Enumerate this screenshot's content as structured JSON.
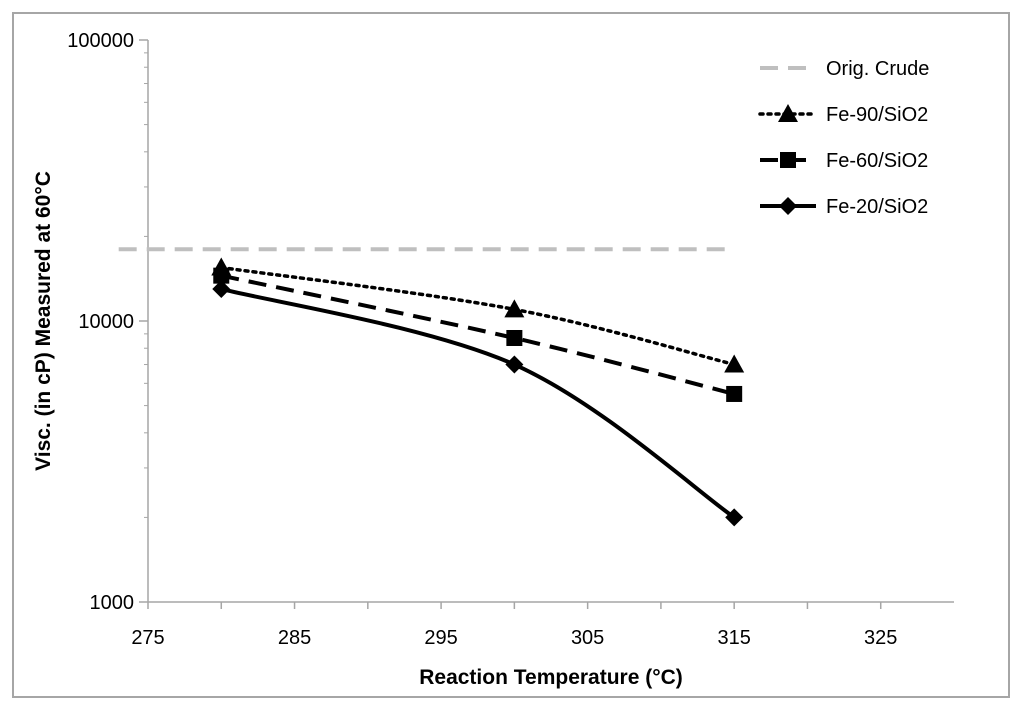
{
  "chart_data": {
    "type": "line",
    "title": "",
    "xlabel": "Reaction Temperature (°C)",
    "ylabel": "Visc. (in cP) Measured at 60°C",
    "xlim": [
      275,
      330
    ],
    "ylim": [
      1000,
      100000
    ],
    "yscale": "log",
    "x_ticks": [
      275,
      285,
      295,
      305,
      315,
      325
    ],
    "y_ticks": [
      1000,
      10000,
      100000
    ],
    "legend_position": "top-right",
    "reference_line": {
      "name": "Orig. Crude",
      "value": 18000,
      "x_range": [
        273,
        315
      ],
      "color": "#bfbfbf",
      "style": "dashed"
    },
    "series": [
      {
        "name": "Fe-90/SiO2",
        "x": [
          280,
          300,
          315
        ],
        "values": [
          15500,
          11000,
          7000
        ],
        "marker": "triangle",
        "style": "dotted",
        "color": "#000000"
      },
      {
        "name": "Fe-60/SiO2",
        "x": [
          280,
          300,
          315
        ],
        "values": [
          14500,
          8700,
          5500
        ],
        "marker": "square",
        "style": "dashed",
        "color": "#000000"
      },
      {
        "name": "Fe-20/SiO2",
        "x": [
          280,
          300,
          315
        ],
        "values": [
          13000,
          7000,
          2000
        ],
        "marker": "diamond",
        "style": "solid",
        "color": "#000000"
      }
    ]
  }
}
